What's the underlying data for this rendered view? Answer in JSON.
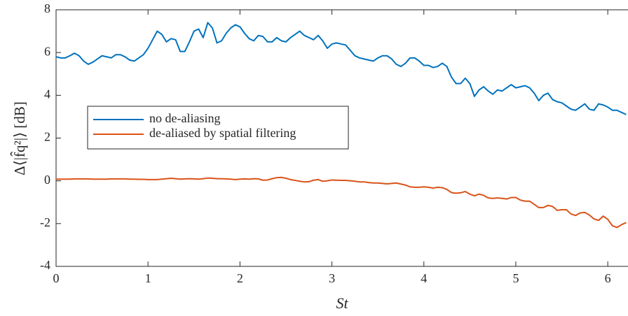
{
  "chart_data": {
    "type": "line",
    "xlabel": "St",
    "ylabel": "Δ⟨|f̂q²|⟩ [dB]",
    "xlim": [
      0,
      6.22
    ],
    "xticks": [
      0,
      1,
      2,
      3,
      4,
      5,
      6
    ],
    "ylim": [
      -4,
      8
    ],
    "yticks": [
      -4,
      -2,
      0,
      2,
      4,
      6,
      8
    ],
    "grid": false,
    "legend": "west",
    "x": [
      0,
      0.05,
      0.1,
      0.15,
      0.2,
      0.25,
      0.3,
      0.35,
      0.4,
      0.45,
      0.5,
      0.55,
      0.6,
      0.65,
      0.7,
      0.75,
      0.8,
      0.85,
      0.9,
      0.95,
      1,
      1.05,
      1.1,
      1.15,
      1.2,
      1.25,
      1.3,
      1.35,
      1.4,
      1.45,
      1.5,
      1.55,
      1.6,
      1.65,
      1.7,
      1.75,
      1.8,
      1.85,
      1.9,
      1.95,
      2,
      2.05,
      2.1,
      2.15,
      2.2,
      2.25,
      2.3,
      2.35,
      2.4,
      2.45,
      2.5,
      2.55,
      2.6,
      2.65,
      2.7,
      2.75,
      2.8,
      2.85,
      2.9,
      2.95,
      3,
      3.05,
      3.1,
      3.15,
      3.2,
      3.25,
      3.3,
      3.35,
      3.4,
      3.45,
      3.5,
      3.55,
      3.6,
      3.65,
      3.7,
      3.75,
      3.8,
      3.85,
      3.9,
      3.95,
      4,
      4.05,
      4.1,
      4.15,
      4.2,
      4.25,
      4.3,
      4.35,
      4.4,
      4.45,
      4.5,
      4.55,
      4.6,
      4.65,
      4.7,
      4.75,
      4.8,
      4.85,
      4.9,
      4.95,
      5,
      5.05,
      5.1,
      5.15,
      5.2,
      5.25,
      5.3,
      5.35,
      5.4,
      5.45,
      5.5,
      5.55,
      5.6,
      5.65,
      5.7,
      5.75,
      5.8,
      5.85,
      5.9,
      5.95,
      6,
      6.05,
      6.1,
      6.15,
      6.2
    ],
    "series": [
      {
        "name": "no de-aliasing",
        "color": "#0072bd",
        "values": [
          5.8,
          5.75,
          5.75,
          5.85,
          5.97,
          5.85,
          5.6,
          5.45,
          5.55,
          5.7,
          5.85,
          5.8,
          5.75,
          5.9,
          5.9,
          5.8,
          5.65,
          5.6,
          5.75,
          5.9,
          6.2,
          6.6,
          7.0,
          6.85,
          6.5,
          6.65,
          6.6,
          6.05,
          6.05,
          6.5,
          7.0,
          7.1,
          6.7,
          7.4,
          7.15,
          6.45,
          6.55,
          6.9,
          7.15,
          7.3,
          7.2,
          6.9,
          6.65,
          6.55,
          6.8,
          6.75,
          6.5,
          6.5,
          6.7,
          6.55,
          6.5,
          6.7,
          6.85,
          7.0,
          6.8,
          6.7,
          6.6,
          6.8,
          6.55,
          6.2,
          6.4,
          6.45,
          6.4,
          6.35,
          6.1,
          5.85,
          5.75,
          5.7,
          5.65,
          5.6,
          5.75,
          5.85,
          5.85,
          5.7,
          5.45,
          5.35,
          5.5,
          5.75,
          5.75,
          5.6,
          5.4,
          5.4,
          5.3,
          5.35,
          5.5,
          5.35,
          4.85,
          4.55,
          4.55,
          4.8,
          4.55,
          3.95,
          4.25,
          4.4,
          4.2,
          4.05,
          4.25,
          4.2,
          4.35,
          4.5,
          4.35,
          4.4,
          4.45,
          4.35,
          4.1,
          3.75,
          4.0,
          4.1,
          3.8,
          3.7,
          3.65,
          3.5,
          3.35,
          3.3,
          3.45,
          3.6,
          3.35,
          3.3,
          3.6,
          3.55,
          3.45,
          3.3,
          3.3,
          3.2,
          3.1
        ]
      },
      {
        "name": "de-aliased by spatial filtering",
        "color": "#d95319",
        "values": [
          0.08,
          0.08,
          0.08,
          0.08,
          0.09,
          0.09,
          0.09,
          0.09,
          0.08,
          0.08,
          0.08,
          0.08,
          0.09,
          0.09,
          0.09,
          0.09,
          0.08,
          0.08,
          0.07,
          0.07,
          0.06,
          0.06,
          0.06,
          0.08,
          0.1,
          0.12,
          0.1,
          0.08,
          0.09,
          0.1,
          0.09,
          0.08,
          0.1,
          0.13,
          0.12,
          0.1,
          0.1,
          0.09,
          0.08,
          0.06,
          0.08,
          0.09,
          0.08,
          0.1,
          0.09,
          0.03,
          0.04,
          0.1,
          0.15,
          0.16,
          0.12,
          0.06,
          0.02,
          -0.02,
          -0.05,
          -0.04,
          0.03,
          0.06,
          -0.02,
          0.0,
          0.04,
          0.03,
          0.02,
          0.02,
          0.0,
          -0.02,
          -0.05,
          -0.05,
          -0.08,
          -0.1,
          -0.1,
          -0.12,
          -0.14,
          -0.12,
          -0.1,
          -0.15,
          -0.2,
          -0.28,
          -0.3,
          -0.3,
          -0.28,
          -0.3,
          -0.34,
          -0.3,
          -0.32,
          -0.4,
          -0.55,
          -0.58,
          -0.56,
          -0.5,
          -0.62,
          -0.7,
          -0.62,
          -0.68,
          -0.8,
          -0.82,
          -0.8,
          -0.82,
          -0.85,
          -0.78,
          -0.78,
          -0.9,
          -0.95,
          -0.95,
          -1.1,
          -1.25,
          -1.25,
          -1.15,
          -1.2,
          -1.38,
          -1.35,
          -1.35,
          -1.55,
          -1.62,
          -1.5,
          -1.48,
          -1.6,
          -1.78,
          -1.85,
          -1.65,
          -1.8,
          -2.1,
          -2.18,
          -2.05,
          -1.95
        ]
      }
    ]
  }
}
